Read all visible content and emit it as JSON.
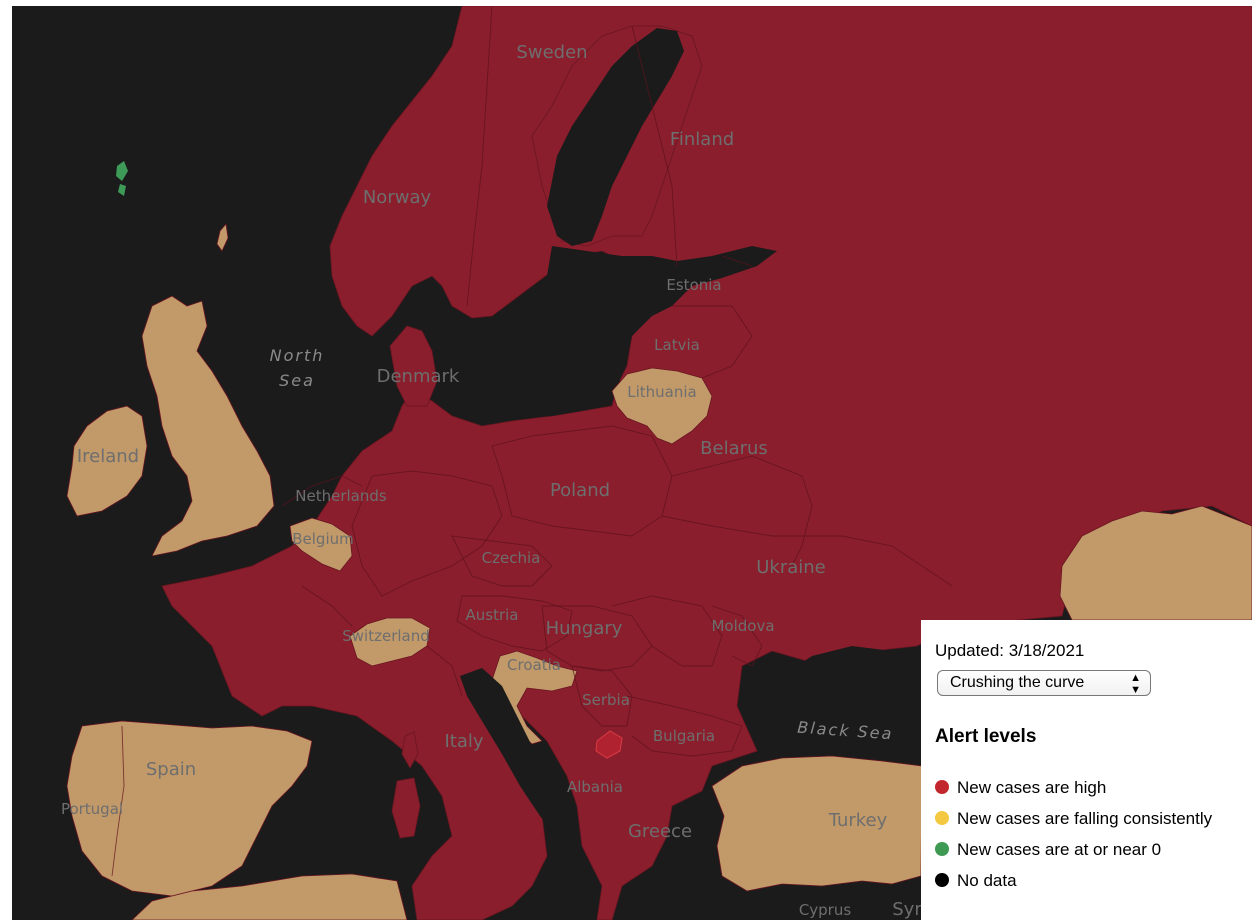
{
  "map": {
    "country_labels": [
      {
        "id": "sweden",
        "text": "Sweden"
      },
      {
        "id": "finland",
        "text": "Finland"
      },
      {
        "id": "norway",
        "text": "Norway"
      },
      {
        "id": "estonia",
        "text": "Estonia"
      },
      {
        "id": "latvia",
        "text": "Latvia"
      },
      {
        "id": "lithuania",
        "text": "Lithuania"
      },
      {
        "id": "denmark",
        "text": "Denmark"
      },
      {
        "id": "ireland",
        "text": "Ireland"
      },
      {
        "id": "belarus",
        "text": "Belarus"
      },
      {
        "id": "netherlands",
        "text": "Netherlands"
      },
      {
        "id": "poland",
        "text": "Poland"
      },
      {
        "id": "belgium",
        "text": "Belgium"
      },
      {
        "id": "czechia",
        "text": "Czechia"
      },
      {
        "id": "ukraine",
        "text": "Ukraine"
      },
      {
        "id": "austria",
        "text": "Austria"
      },
      {
        "id": "hungary",
        "text": "Hungary"
      },
      {
        "id": "moldova",
        "text": "Moldova"
      },
      {
        "id": "switzerland",
        "text": "Switzerland"
      },
      {
        "id": "croatia",
        "text": "Croatia"
      },
      {
        "id": "serbia",
        "text": "Serbia"
      },
      {
        "id": "italy",
        "text": "Italy"
      },
      {
        "id": "bulgaria",
        "text": "Bulgaria"
      },
      {
        "id": "spain",
        "text": "Spain"
      },
      {
        "id": "albania",
        "text": "Albania"
      },
      {
        "id": "portugal",
        "text": "Portugal"
      },
      {
        "id": "greece",
        "text": "Greece"
      },
      {
        "id": "turkey",
        "text": "Turkey"
      },
      {
        "id": "cyprus",
        "text": "Cyprus"
      },
      {
        "id": "syria",
        "text": "Syr"
      }
    ],
    "sea_labels": {
      "north_sea_line1": "North",
      "north_sea_line2": "Sea",
      "black_sea": "Black Sea"
    },
    "colors": {
      "sea": "#1b1b1b",
      "high": "#8a1e2c",
      "falling": "#c29a6a",
      "near_zero": "#3d9a57"
    }
  },
  "panel": {
    "updated": "Updated: 3/18/2021",
    "mode_selected": "Crushing the curve",
    "legend_title": "Alert levels",
    "legend": [
      {
        "label": "New cases are high",
        "color": "#c1272d"
      },
      {
        "label": "New cases are falling consistently",
        "color": "#f5c842"
      },
      {
        "label": "New cases are at or near 0",
        "color": "#3e9a52"
      },
      {
        "label": "No data",
        "color": "#000000"
      }
    ]
  }
}
